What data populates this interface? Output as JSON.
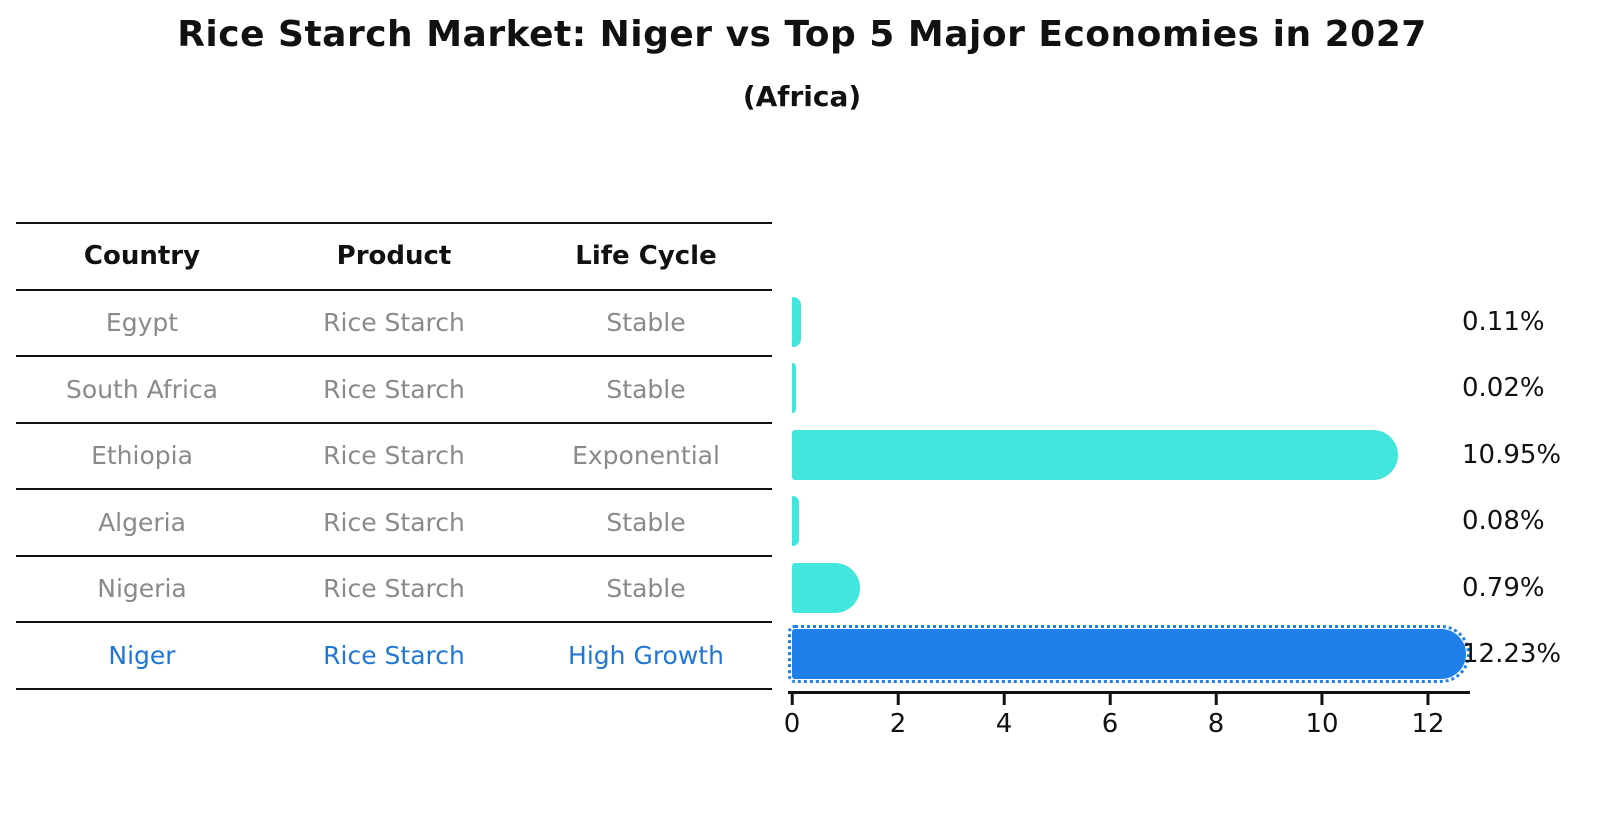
{
  "header": {
    "title": "Rice Starch Market: Niger vs Top 5 Major Economies in 2027",
    "subtitle": "(Africa)"
  },
  "table": {
    "columns": [
      "Country",
      "Product",
      "Life Cycle"
    ],
    "rows": [
      {
        "cells": [
          "Egypt",
          "Rice Starch",
          "Stable"
        ],
        "highlight": false
      },
      {
        "cells": [
          "South Africa",
          "Rice Starch",
          "Stable"
        ],
        "highlight": false
      },
      {
        "cells": [
          "Ethiopia",
          "Rice Starch",
          "Exponential"
        ],
        "highlight": false
      },
      {
        "cells": [
          "Algeria",
          "Rice Starch",
          "Stable"
        ],
        "highlight": false
      },
      {
        "cells": [
          "Nigeria",
          "Rice Starch",
          "Stable"
        ],
        "highlight": false
      },
      {
        "cells": [
          "Niger",
          "Rice Starch",
          "High Growth"
        ],
        "highlight": true
      }
    ]
  },
  "chart_data": {
    "type": "bar",
    "orientation": "horizontal",
    "title": "Rice Starch Market: Niger vs Top 5 Major Economies in 2027",
    "subtitle": "(Africa)",
    "categories": [
      "Egypt",
      "South Africa",
      "Ethiopia",
      "Algeria",
      "Nigeria",
      "Niger"
    ],
    "values": [
      0.11,
      0.02,
      10.95,
      0.08,
      0.79,
      12.23
    ],
    "value_labels": [
      "0.11%",
      "0.02%",
      "10.95%",
      "0.08%",
      "0.79%",
      "12.23%"
    ],
    "unit": "percent",
    "x_ticks": [
      "0",
      "2",
      "4",
      "6",
      "8",
      "10",
      "12"
    ],
    "xlim": [
      0,
      12.8
    ],
    "grid": false,
    "legend": "none",
    "bar_color": "#43e6dc",
    "highlight_category": "Niger",
    "highlight_bar_color": "#1e80e8",
    "highlight_bar_style": "dotted-outline",
    "highlight_text_color": "#2277d4"
  }
}
